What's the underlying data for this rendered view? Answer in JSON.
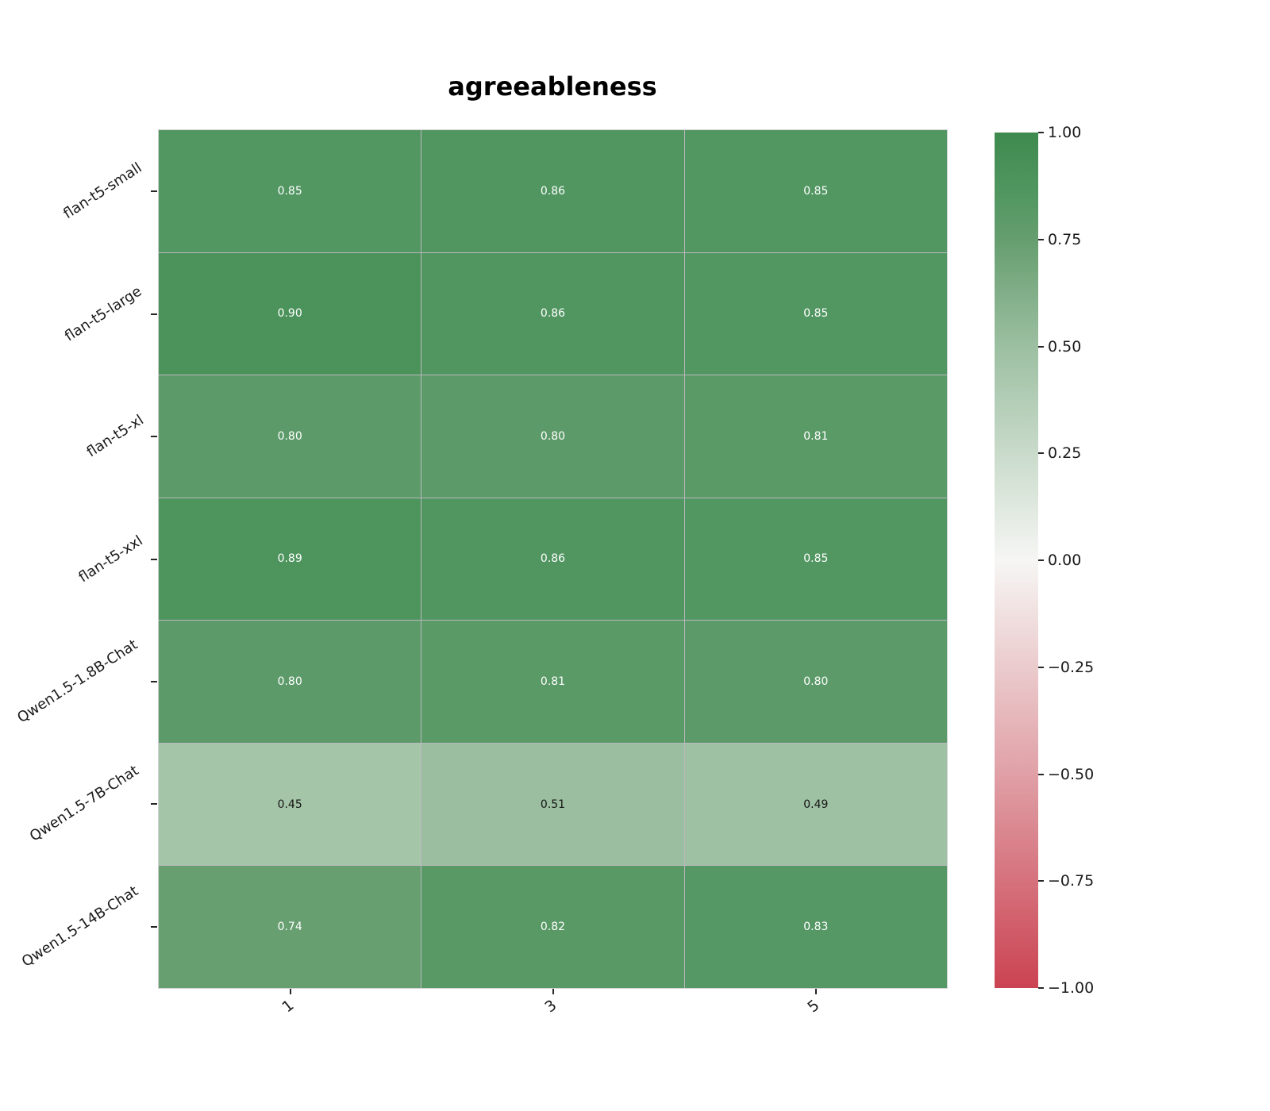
{
  "chart_data": {
    "type": "heatmap",
    "title": "agreeableness",
    "rows": [
      "flan-t5-small",
      "flan-t5-large",
      "flan-t5-xl",
      "flan-t5-xxl",
      "Qwen1.5-1.8B-Chat",
      "Qwen1.5-7B-Chat",
      "Qwen1.5-14B-Chat"
    ],
    "columns": [
      "1",
      "3",
      "5"
    ],
    "values": [
      [
        0.85,
        0.86,
        0.85
      ],
      [
        0.9,
        0.86,
        0.85
      ],
      [
        0.8,
        0.8,
        0.81
      ],
      [
        0.89,
        0.86,
        0.85
      ],
      [
        0.8,
        0.81,
        0.8
      ],
      [
        0.45,
        0.51,
        0.49
      ],
      [
        0.74,
        0.82,
        0.83
      ]
    ],
    "value_decimals": 2,
    "colorbar": {
      "min": -1.0,
      "max": 1.0,
      "tick_values": [
        1.0,
        0.75,
        0.5,
        0.25,
        0.0,
        -0.25,
        -0.5,
        -0.75,
        -1.0
      ],
      "tick_labels": [
        "1.00",
        "0.75",
        "0.50",
        "0.25",
        "0.00",
        "−0.25",
        "−0.50",
        "−0.75",
        "−1.00"
      ]
    },
    "colormap_stops": [
      {
        "value": 1.0,
        "color": "#3e8a4e"
      },
      {
        "value": 0.85,
        "color": "#529762"
      },
      {
        "value": 0.75,
        "color": "#669e6f"
      },
      {
        "value": 0.5,
        "color": "#9cbfa1"
      },
      {
        "value": 0.0,
        "color": "#f6f6f4"
      },
      {
        "value": -0.5,
        "color": "#e0a0a6"
      },
      {
        "value": -1.0,
        "color": "#cb4352"
      }
    ],
    "annotation_text_colors": {
      "dark_cell": "#ffffff",
      "light_cell": "#151515"
    },
    "layout": {
      "grid": "off",
      "legend": "colorbar-right"
    }
  }
}
